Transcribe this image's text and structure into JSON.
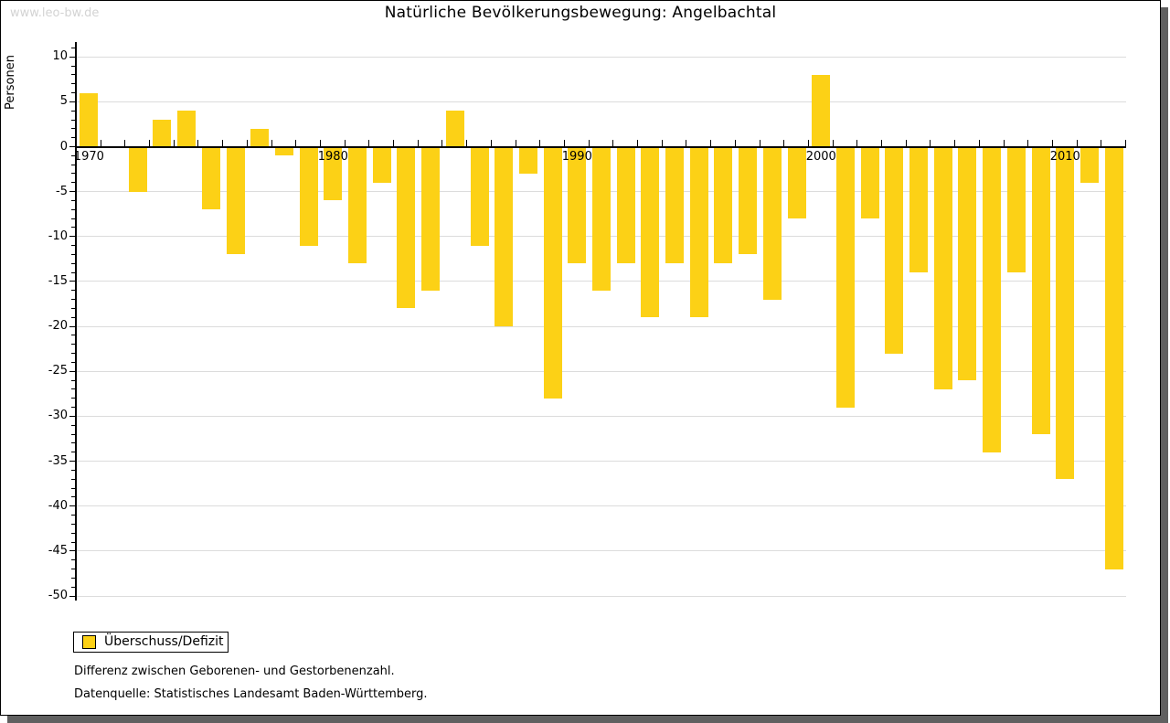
{
  "watermark": "www.leo-bw.de",
  "title": "Natürliche Bevölkerungsbewegung: Angelbachtal",
  "legend": {
    "label": "Überschuss/Defizit"
  },
  "footer": {
    "line1": "Differenz zwischen Geborenen- und Gestorbenenzahl.",
    "line2": "Datenquelle: Statistisches Landesamt Baden-Württemberg."
  },
  "chart_data": {
    "type": "bar",
    "title": "Natürliche Bevölkerungsbewegung: Angelbachtal",
    "xlabel": "",
    "ylabel": "Personen",
    "series_name": "Überschuss/Defizit",
    "categories": [
      "1970",
      "1971",
      "1972",
      "1973",
      "1974",
      "1975",
      "1976",
      "1977",
      "1978",
      "1979",
      "1980",
      "1981",
      "1982",
      "1983",
      "1984",
      "1985",
      "1986",
      "1987",
      "1988",
      "1989",
      "1990",
      "1991",
      "1992",
      "1993",
      "1994",
      "1995",
      "1996",
      "1997",
      "1998",
      "1999",
      "2000",
      "2001",
      "2002",
      "2003",
      "2004",
      "2005",
      "2006",
      "2007",
      "2008",
      "2009",
      "2010",
      "2011",
      "2012"
    ],
    "values": [
      6,
      0,
      -5,
      3,
      4,
      -7,
      -12,
      2,
      -1,
      -11,
      -6,
      -13,
      -4,
      -18,
      -16,
      4,
      -11,
      -20,
      -3,
      -28,
      -13,
      -16,
      -13,
      -19,
      -13,
      -19,
      -13,
      -12,
      -17,
      -8,
      8,
      -29,
      -8,
      -23,
      -14,
      -27,
      -26,
      -34,
      -14,
      -32,
      -37,
      -4,
      -47
    ],
    "ylim": [
      -50,
      10
    ],
    "ytick_interval": 5,
    "ytick_labels": [
      "10",
      "5",
      "0",
      "-5",
      "-10",
      "-15",
      "-20",
      "-25",
      "-30",
      "-35",
      "-40",
      "-45",
      "-50"
    ],
    "xtick_labels": [
      "1970",
      "1980",
      "1990",
      "2000",
      "2010"
    ],
    "bar_color": "#fcd116",
    "grid": "horizontal",
    "legend_position": "bottom-left",
    "zero_line": true
  }
}
